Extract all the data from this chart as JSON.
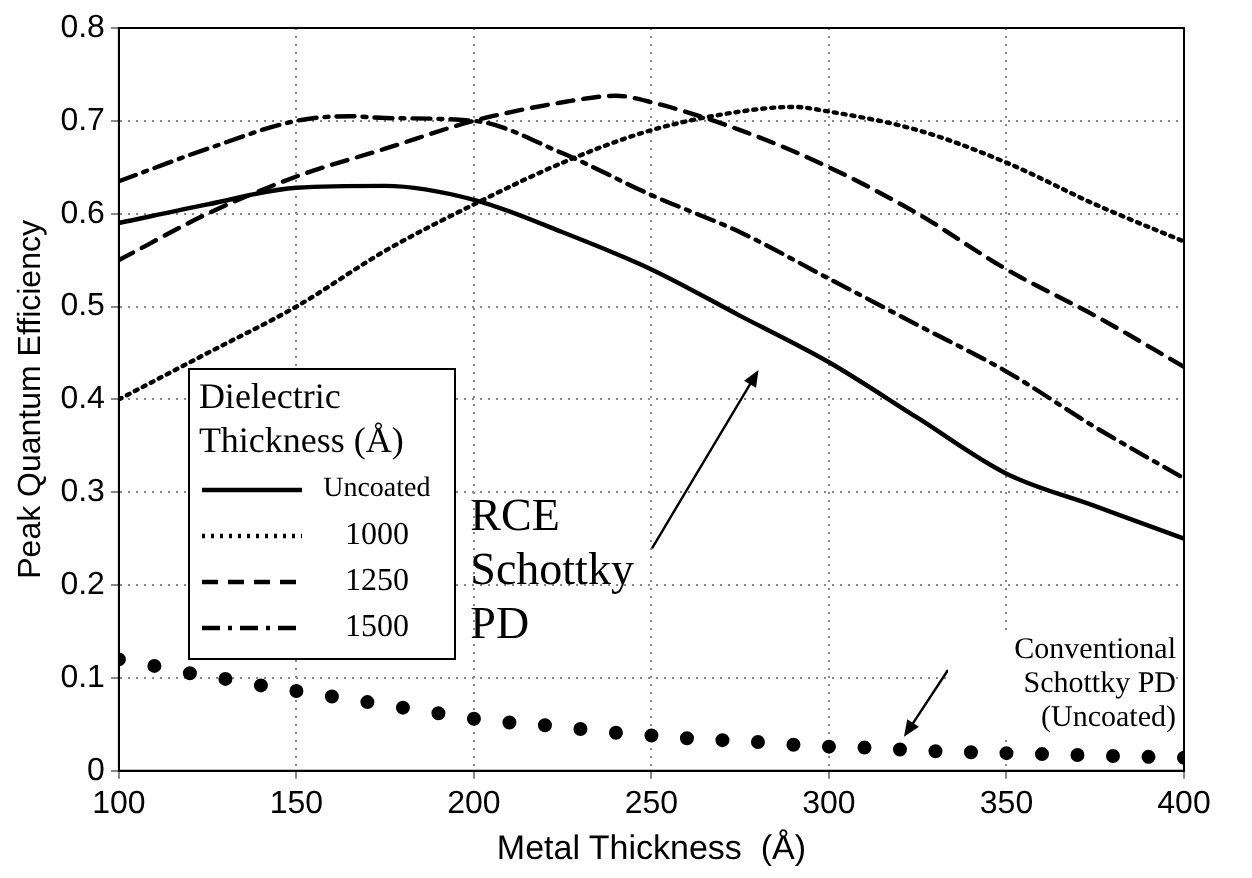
{
  "chart_data": {
    "type": "line",
    "xlabel": "Metal Thickness  (Å)",
    "ylabel": "Peak Quantum Efficiency",
    "legend_title": "Dielectric Thickness (Å)",
    "legend": "left",
    "grid": true,
    "xlim": [
      100,
      400
    ],
    "xticks": [
      100,
      150,
      200,
      250,
      300,
      350,
      400
    ],
    "ylim": [
      0,
      0.8
    ],
    "yticks": [
      0,
      0.1,
      0.2,
      0.3,
      0.4,
      0.5,
      0.6,
      0.7,
      0.8
    ],
    "series": [
      {
        "name": "Uncoated",
        "color": "#000000",
        "line_style": "solid",
        "x": [
          100,
          125,
          150,
          175,
          200,
          225,
          250,
          275,
          300,
          325,
          350,
          375,
          400
        ],
        "values": [
          0.59,
          0.61,
          0.628,
          0.63,
          0.615,
          0.58,
          0.54,
          0.49,
          0.44,
          0.38,
          0.32,
          0.285,
          0.25
        ]
      },
      {
        "name": "1000",
        "color": "#000000",
        "line_style": "dotted",
        "x": [
          100,
          125,
          150,
          175,
          200,
          225,
          250,
          275,
          290,
          300,
          325,
          350,
          375,
          400
        ],
        "values": [
          0.4,
          0.45,
          0.5,
          0.56,
          0.61,
          0.655,
          0.69,
          0.71,
          0.715,
          0.71,
          0.69,
          0.655,
          0.61,
          0.57
        ]
      },
      {
        "name": "1250",
        "color": "#000000",
        "line_style": "dashed",
        "x": [
          100,
          125,
          150,
          175,
          200,
          225,
          240,
          250,
          275,
          300,
          325,
          350,
          375,
          400
        ],
        "values": [
          0.55,
          0.6,
          0.64,
          0.67,
          0.7,
          0.72,
          0.727,
          0.72,
          0.69,
          0.65,
          0.6,
          0.54,
          0.49,
          0.435
        ]
      },
      {
        "name": "1500",
        "color": "#000000",
        "line_style": "dashdot",
        "x": [
          100,
          125,
          150,
          165,
          175,
          200,
          225,
          250,
          275,
          300,
          325,
          350,
          375,
          400
        ],
        "values": [
          0.635,
          0.67,
          0.7,
          0.705,
          0.703,
          0.7,
          0.665,
          0.62,
          0.58,
          0.53,
          0.48,
          0.43,
          0.37,
          0.315
        ]
      },
      {
        "type": "scatter",
        "marker": "circle",
        "color": "#000000",
        "x": [
          100,
          110,
          120,
          130,
          140,
          150,
          160,
          170,
          180,
          190,
          200,
          210,
          220,
          230,
          240,
          250,
          260,
          270,
          280,
          290,
          300,
          310,
          320,
          330,
          340,
          350,
          360,
          370,
          380,
          390,
          400
        ],
        "values": [
          0.12,
          0.113,
          0.105,
          0.099,
          0.092,
          0.086,
          0.08,
          0.074,
          0.068,
          0.062,
          0.056,
          0.052,
          0.049,
          0.045,
          0.041,
          0.038,
          0.035,
          0.033,
          0.031,
          0.028,
          0.026,
          0.025,
          0.023,
          0.021,
          0.02,
          0.019,
          0.018,
          0.017,
          0.016,
          0.015,
          0.014
        ]
      }
    ],
    "annotations": [
      "RCE Schottky PD",
      "Conventional Schottky PD (Uncoated)"
    ]
  }
}
